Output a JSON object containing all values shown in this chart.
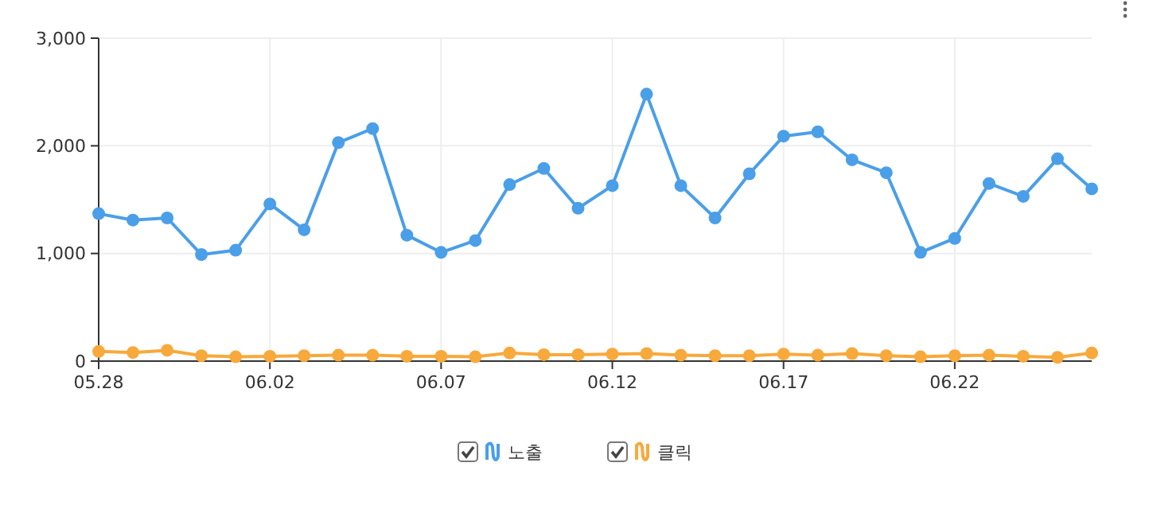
{
  "chart_data": {
    "type": "line",
    "categories": [
      "05.28",
      null,
      null,
      null,
      null,
      "06.02",
      null,
      null,
      null,
      null,
      "06.07",
      null,
      null,
      null,
      null,
      "06.12",
      null,
      null,
      null,
      null,
      "06.17",
      null,
      null,
      null,
      null,
      "06.22",
      null,
      null,
      null,
      null
    ],
    "series": [
      {
        "name": "노출",
        "color": "#4a9fe8",
        "values": [
          1370,
          1310,
          1330,
          990,
          1030,
          1460,
          1220,
          2030,
          2160,
          1170,
          1010,
          1120,
          1640,
          1790,
          1420,
          1630,
          2480,
          1630,
          1330,
          1740,
          2090,
          2130,
          1870,
          1750,
          1010,
          1140,
          1650,
          1530,
          1880,
          1600
        ]
      },
      {
        "name": "클릭",
        "color": "#f8a93c",
        "values": [
          90,
          80,
          100,
          50,
          40,
          45,
          50,
          55,
          55,
          45,
          45,
          40,
          75,
          60,
          60,
          65,
          70,
          55,
          50,
          50,
          65,
          55,
          70,
          50,
          40,
          50,
          55,
          45,
          35,
          75
        ]
      }
    ],
    "ylim": [
      0,
      3000
    ],
    "yticks": [
      0,
      {
        "value": 1000,
        "label": "1,000"
      },
      {
        "value": 2000,
        "label": "2,000"
      },
      {
        "value": 3000,
        "label": "3,000"
      }
    ],
    "grid": true,
    "legend": "bottom",
    "marker": "circle",
    "line_style": "solid"
  }
}
